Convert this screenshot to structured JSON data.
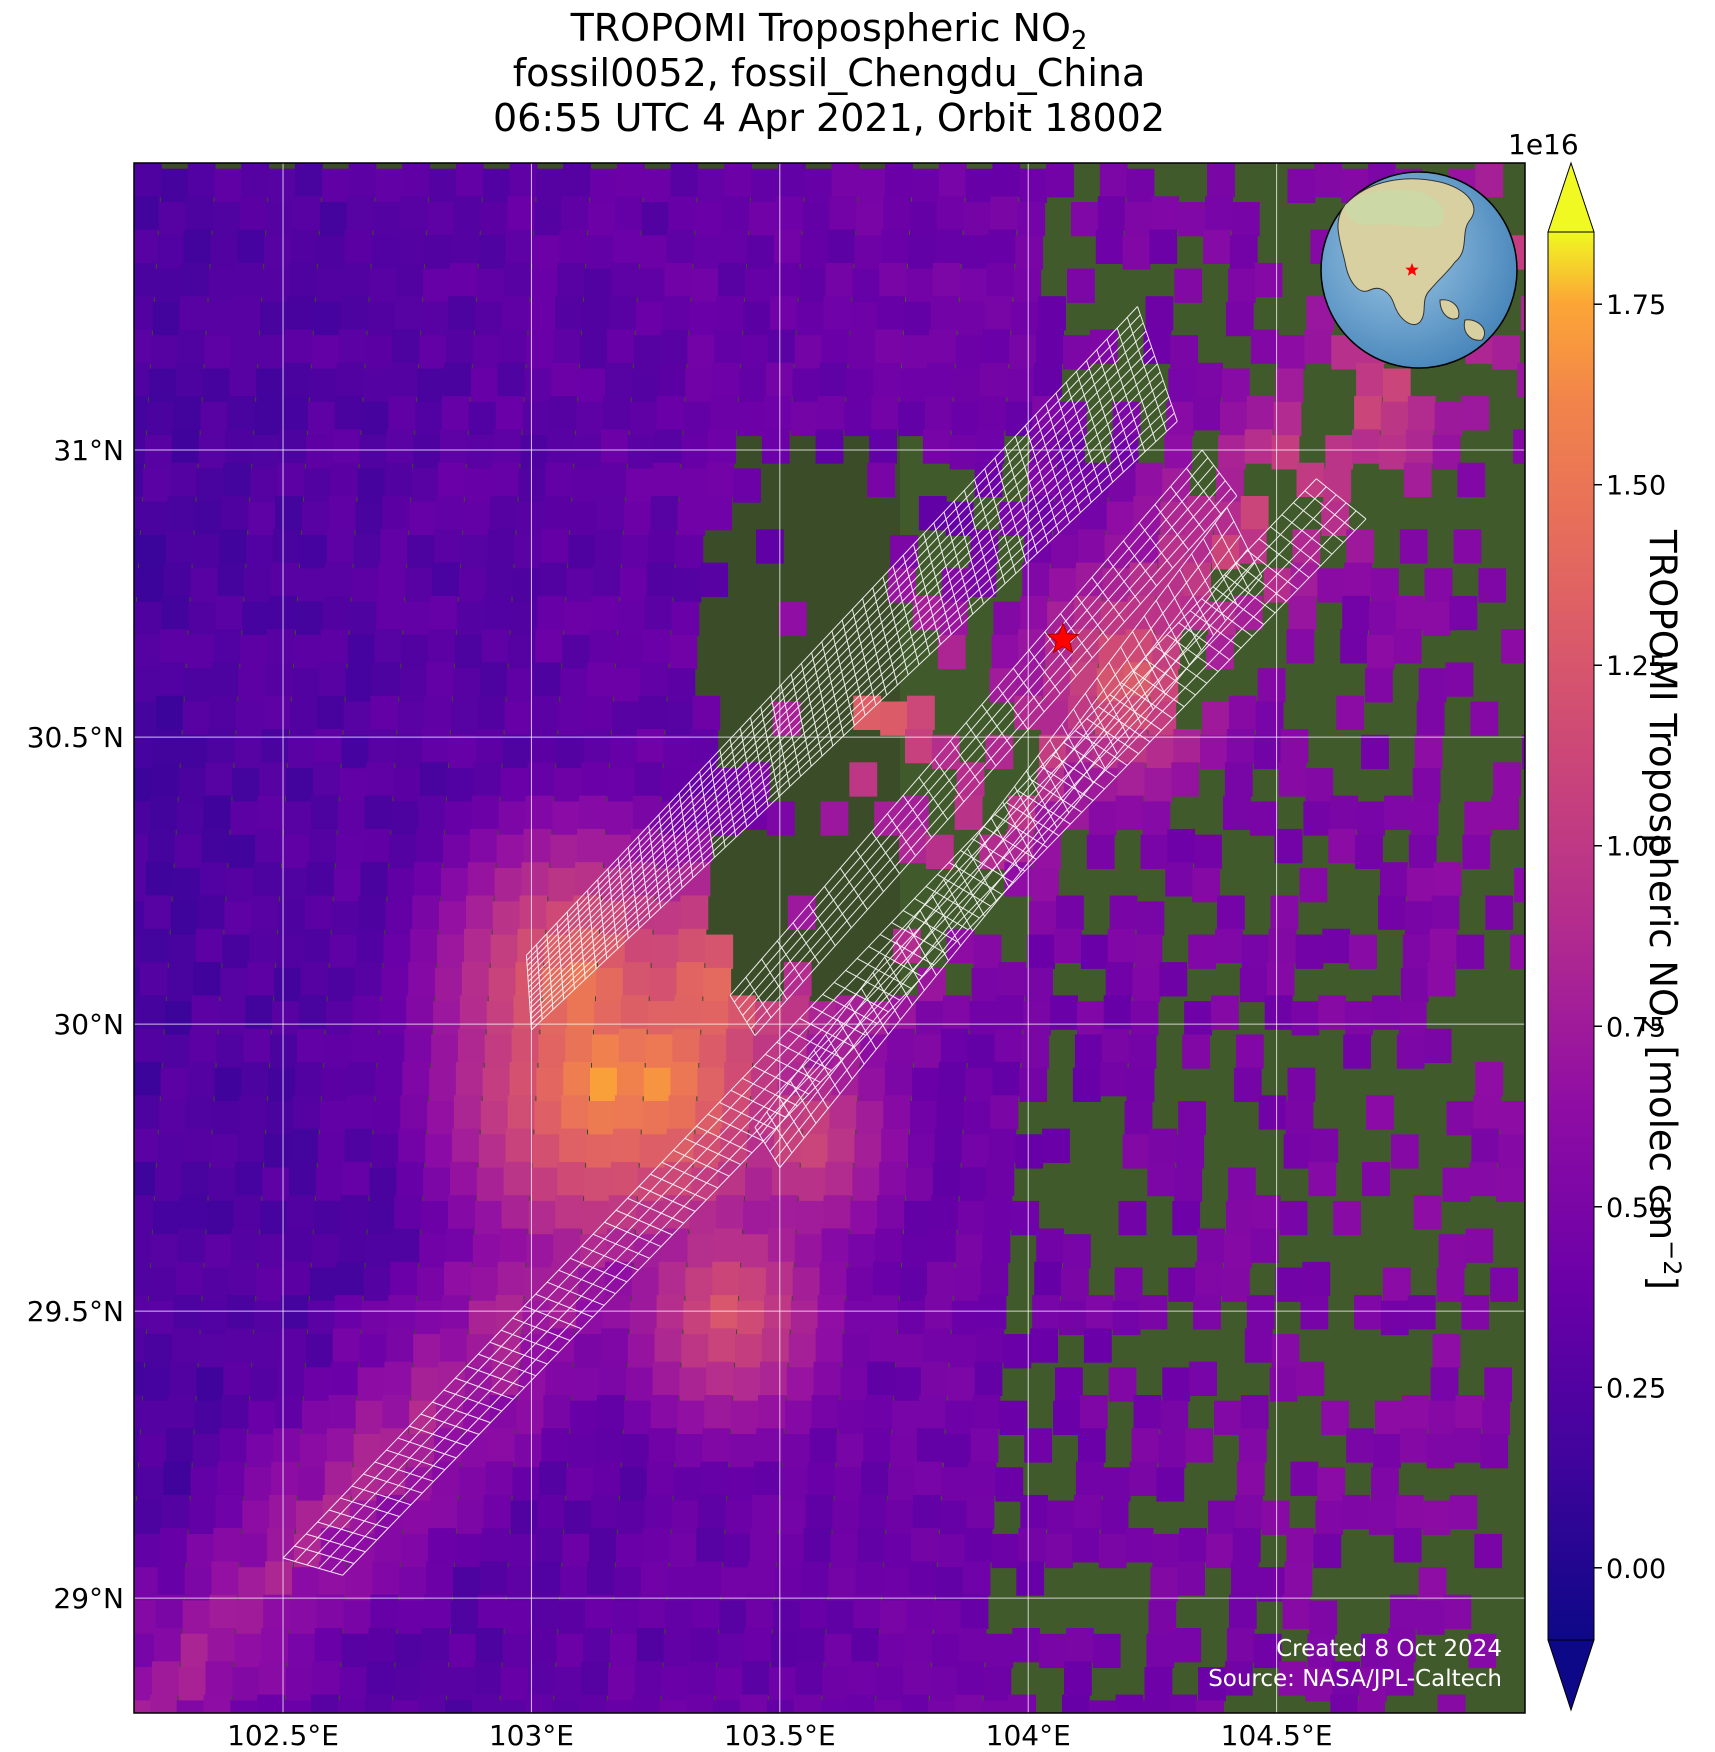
{
  "title": {
    "line1_prefix": "TROPOMI Tropospheric NO",
    "line1_sub": "2",
    "line2": "fossil0052, fossil_Chengdu_China",
    "line3": "06:55 UTC 4 Apr 2021, Orbit 18002"
  },
  "axes": {
    "x_ticks": [
      "102.5°E",
      "103°E",
      "103.5°E",
      "104°E",
      "104.5°E"
    ],
    "y_ticks": [
      "31°N",
      "30.5°N",
      "30°N",
      "29.5°N",
      "29°N"
    ],
    "x_tick_values": [
      102.5,
      103.0,
      103.5,
      104.0,
      104.5
    ],
    "y_tick_values": [
      31.0,
      30.5,
      30.0,
      29.5,
      29.0
    ],
    "lon_range": [
      102.2,
      105.0
    ],
    "lat_range": [
      28.8,
      31.5
    ],
    "grid": true
  },
  "colorbar": {
    "label_prefix": "TROPOMI Tropospheric NO",
    "label_sub": "2",
    "label_mid": " [molec cm",
    "label_sup": "−2",
    "label_end": "]",
    "exponent": "1e16",
    "ticks": [
      "0.00",
      "0.25",
      "0.50",
      "0.75",
      "1.00",
      "1.25",
      "1.50",
      "1.75"
    ],
    "tick_values": [
      0.0,
      0.25,
      0.5,
      0.75,
      1.0,
      1.25,
      1.5,
      1.75
    ],
    "range": [
      -0.1,
      1.85
    ],
    "colormap": "plasma",
    "extend": "both"
  },
  "source_marker": {
    "lon": 104.07,
    "lat": 30.67,
    "shape": "star",
    "color": "#ff0000"
  },
  "inset_globe": {
    "marker_color": "#ff0000",
    "region": "Asia"
  },
  "credits": {
    "created": "Created 8 Oct 2024",
    "source": "Source: NASA/JPL-Caltech"
  },
  "chart_data": {
    "type": "heatmap",
    "title": "TROPOMI Tropospheric NO2 fossil0052, fossil_Chengdu_China 06:55 UTC 4 Apr 2021, Orbit 18002",
    "xlabel": "",
    "ylabel": "",
    "xlim": [
      102.2,
      105.0
    ],
    "ylim": [
      28.8,
      31.5
    ],
    "value_label": "TROPOMI Tropospheric NO2 [molec cm−2]",
    "value_scale": "1e16",
    "high_values": [
      {
        "lon": 103.15,
        "lat": 29.9,
        "value": 1.75
      },
      {
        "lon": 103.25,
        "lat": 29.9,
        "value": 1.7
      },
      {
        "lon": 103.1,
        "lat": 30.05,
        "value": 1.6
      },
      {
        "lon": 103.35,
        "lat": 30.05,
        "value": 1.5
      },
      {
        "lon": 103.7,
        "lat": 30.55,
        "value": 1.4
      },
      {
        "lon": 104.2,
        "lat": 30.6,
        "value": 1.35
      },
      {
        "lon": 103.4,
        "lat": 29.5,
        "value": 1.3
      },
      {
        "lon": 103.55,
        "lat": 29.8,
        "value": 1.2
      }
    ]
  }
}
